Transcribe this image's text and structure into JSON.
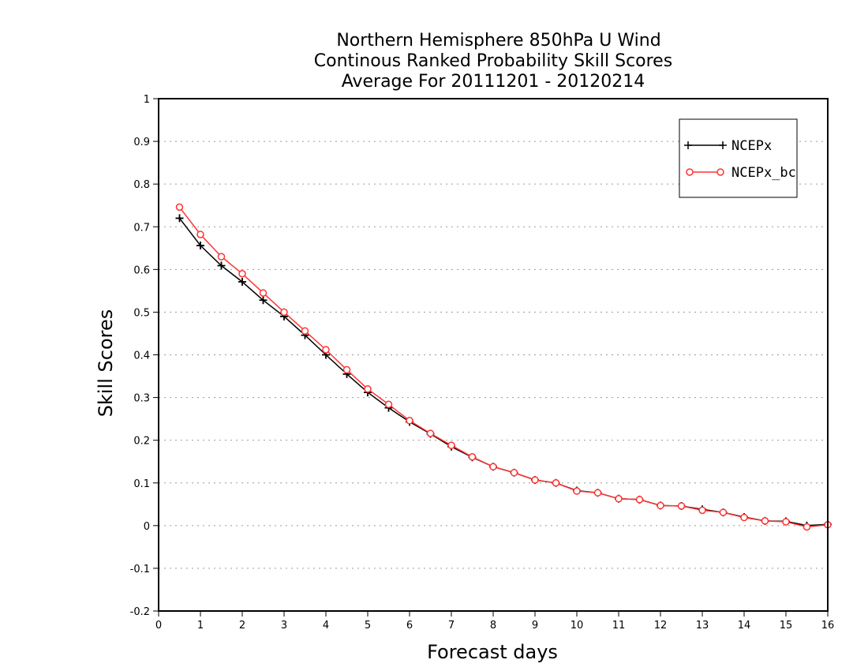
{
  "chart_data": {
    "type": "line",
    "title": [
      "Northern Hemisphere 850hPa U Wind",
      "Continous Ranked Probability Skill Scores",
      "Average For 20111201 - 20120214"
    ],
    "xlabel": "Forecast days",
    "ylabel": "Skill Scores",
    "xlim": [
      0,
      16
    ],
    "ylim": [
      -0.2,
      1
    ],
    "grid": true,
    "legend_position": "top-right",
    "x_ticks": [
      "0",
      "1",
      "2",
      "3",
      "4",
      "5",
      "6",
      "7",
      "8",
      "9",
      "10",
      "11",
      "12",
      "13",
      "14",
      "15",
      "16"
    ],
    "y_ticks": [
      "-0.2",
      "-0.1",
      "0",
      "0.1",
      "0.2",
      "0.3",
      "0.4",
      "0.5",
      "0.6",
      "0.7",
      "0.8",
      "0.9",
      "1"
    ],
    "x": [
      0.5,
      1,
      1.5,
      2,
      2.5,
      3,
      3.5,
      4,
      4.5,
      5,
      5.5,
      6,
      6.5,
      7,
      7.5,
      8,
      8.5,
      9,
      9.5,
      10,
      10.5,
      11,
      11.5,
      12,
      12.5,
      13,
      13.5,
      14,
      14.5,
      15,
      15.5,
      16
    ],
    "series": [
      {
        "name": "NCEPx",
        "color": "#000000",
        "marker": "plus",
        "values": [
          0.72,
          0.656,
          0.609,
          0.571,
          0.528,
          0.49,
          0.446,
          0.4,
          0.355,
          0.312,
          0.276,
          0.243,
          0.215,
          0.185,
          0.16,
          0.138,
          0.124,
          0.107,
          0.1,
          0.082,
          0.077,
          0.063,
          0.061,
          0.047,
          0.046,
          0.038,
          0.031,
          0.02,
          0.011,
          0.01,
          0.0,
          0.003
        ]
      },
      {
        "name": "NCEPx_bc",
        "color": "#ff3333",
        "marker": "circle",
        "values": [
          0.746,
          0.682,
          0.63,
          0.59,
          0.545,
          0.5,
          0.456,
          0.412,
          0.365,
          0.32,
          0.284,
          0.246,
          0.216,
          0.188,
          0.161,
          0.138,
          0.124,
          0.107,
          0.1,
          0.081,
          0.077,
          0.063,
          0.061,
          0.047,
          0.046,
          0.036,
          0.031,
          0.019,
          0.011,
          0.009,
          -0.003,
          0.002
        ]
      }
    ]
  }
}
